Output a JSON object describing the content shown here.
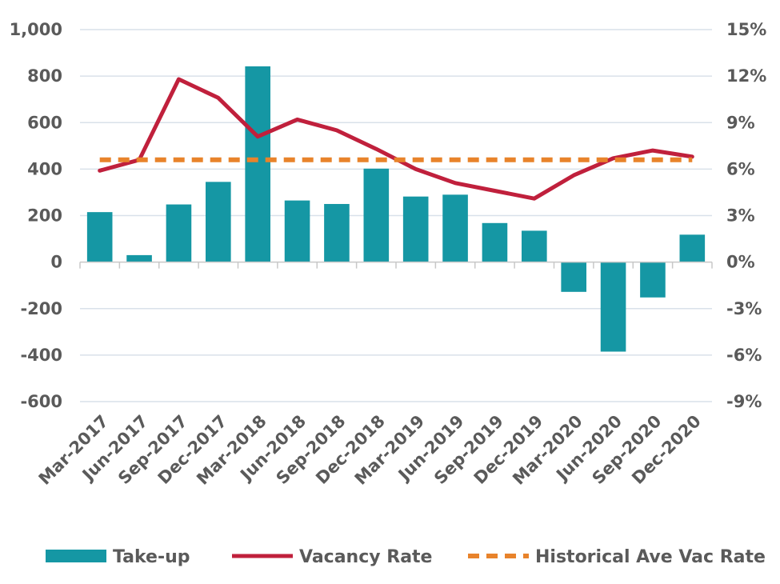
{
  "chart_data": {
    "type": "bar",
    "categories": [
      "Mar-2017",
      "Jun-2017",
      "Sep-2017",
      "Dec-2017",
      "Mar-2018",
      "Jun-2018",
      "Sep-2018",
      "Dec-2018",
      "Mar-2019",
      "Jun-2019",
      "Sep-2019",
      "Dec-2019",
      "Mar-2020",
      "Jun-2020",
      "Sep-2020",
      "Dec-2020"
    ],
    "series": [
      {
        "name": "Take-up",
        "type": "bar",
        "axis": "left",
        "color": "#1597a4",
        "values": [
          215,
          30,
          248,
          345,
          842,
          265,
          250,
          402,
          282,
          290,
          168,
          135,
          -128,
          -385,
          -152,
          118
        ]
      },
      {
        "name": "Vacancy Rate",
        "type": "line",
        "axis": "right",
        "color": "#c0203c",
        "values": [
          5.9,
          6.6,
          11.8,
          10.6,
          8.1,
          9.2,
          8.5,
          7.3,
          6.0,
          5.1,
          4.6,
          4.1,
          5.6,
          6.7,
          7.2,
          6.8
        ]
      },
      {
        "name": "Historical Ave Vac Rate",
        "type": "line-dashed",
        "axis": "right",
        "color": "#e8832b",
        "values": [
          6.6,
          6.6,
          6.6,
          6.6,
          6.6,
          6.6,
          6.6,
          6.6,
          6.6,
          6.6,
          6.6,
          6.6,
          6.6,
          6.6,
          6.6,
          6.6
        ]
      }
    ],
    "y_left": {
      "ylim": [
        -600,
        1000
      ],
      "ticks": [
        "1,000",
        "800",
        "600",
        "400",
        "200",
        "0",
        "-200",
        "-400",
        "-600"
      ],
      "tick_values": [
        1000,
        800,
        600,
        400,
        200,
        0,
        -200,
        -400,
        -600
      ]
    },
    "y_right": {
      "ylim": [
        -9,
        15
      ],
      "ticks": [
        "15%",
        "12%",
        "9%",
        "6%",
        "3%",
        "0%",
        "-3%",
        "-6%",
        "-9%"
      ],
      "tick_values": [
        15,
        12,
        9,
        6,
        3,
        0,
        -3,
        -6,
        -9
      ]
    },
    "grid": true,
    "legend_position": "bottom"
  }
}
